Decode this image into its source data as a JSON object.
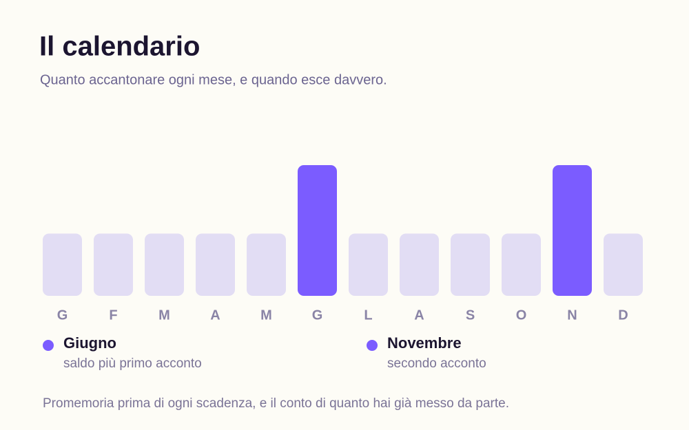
{
  "header": {
    "title": "Il calendario",
    "subtitle": "Quanto accantonare ogni mese, e quando esce davvero."
  },
  "chart_data": {
    "type": "bar",
    "categories": [
      "G",
      "F",
      "M",
      "A",
      "M",
      "G",
      "L",
      "A",
      "S",
      "O",
      "N",
      "D"
    ],
    "values": [
      1,
      1,
      1,
      1,
      1,
      2.1,
      1,
      1,
      1,
      1,
      2.1,
      1
    ],
    "colors": [
      "#e2ddf4",
      "#e2ddf4",
      "#e2ddf4",
      "#e2ddf4",
      "#e2ddf4",
      "#7b5cff",
      "#e2ddf4",
      "#e2ddf4",
      "#e2ddf4",
      "#e2ddf4",
      "#7b5cff",
      "#e2ddf4"
    ]
  },
  "legend": [
    {
      "title": "Giugno",
      "subtitle": "saldo più primo acconto",
      "color": "#7b5cff"
    },
    {
      "title": "Novembre",
      "subtitle": "secondo acconto",
      "color": "#7b5cff"
    }
  ],
  "footer": "Promemoria prima di ogni scadenza, e il conto di quanto hai già messo da parte."
}
